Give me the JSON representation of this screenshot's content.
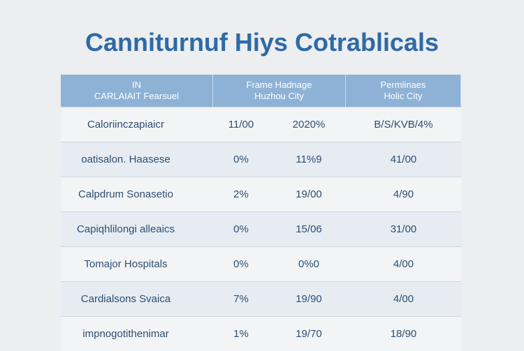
{
  "title": "Canniturnuf Hiys Cotrablicals",
  "table": {
    "header": [
      [
        "IN",
        "CARLAIAIT Fearsuel"
      ],
      [
        "Frame Hadnage",
        "Huzhou City"
      ],
      [
        "Permlinaes",
        "Holic City"
      ]
    ],
    "rows": [
      [
        "Caloriinczapiaicr",
        "11/00",
        "2020%",
        "B/S/KVB/4%"
      ],
      [
        "oatisalon. Haasese",
        "0%",
        "11%9",
        "41/00"
      ],
      [
        "Calpdrum Sonasetio",
        "2%",
        "19/00",
        "4/90"
      ],
      [
        "Capiqhlilongi alleaics",
        "0%",
        "15/06",
        "31/00"
      ],
      [
        "Tomajor Hospitals",
        "0%",
        "0%0",
        "4/00"
      ],
      [
        "Cardialsons Svaica",
        "7%",
        "19/90",
        "4/00"
      ],
      [
        "impnogotithenimar",
        "1%",
        "19/70",
        "18/90"
      ]
    ]
  }
}
